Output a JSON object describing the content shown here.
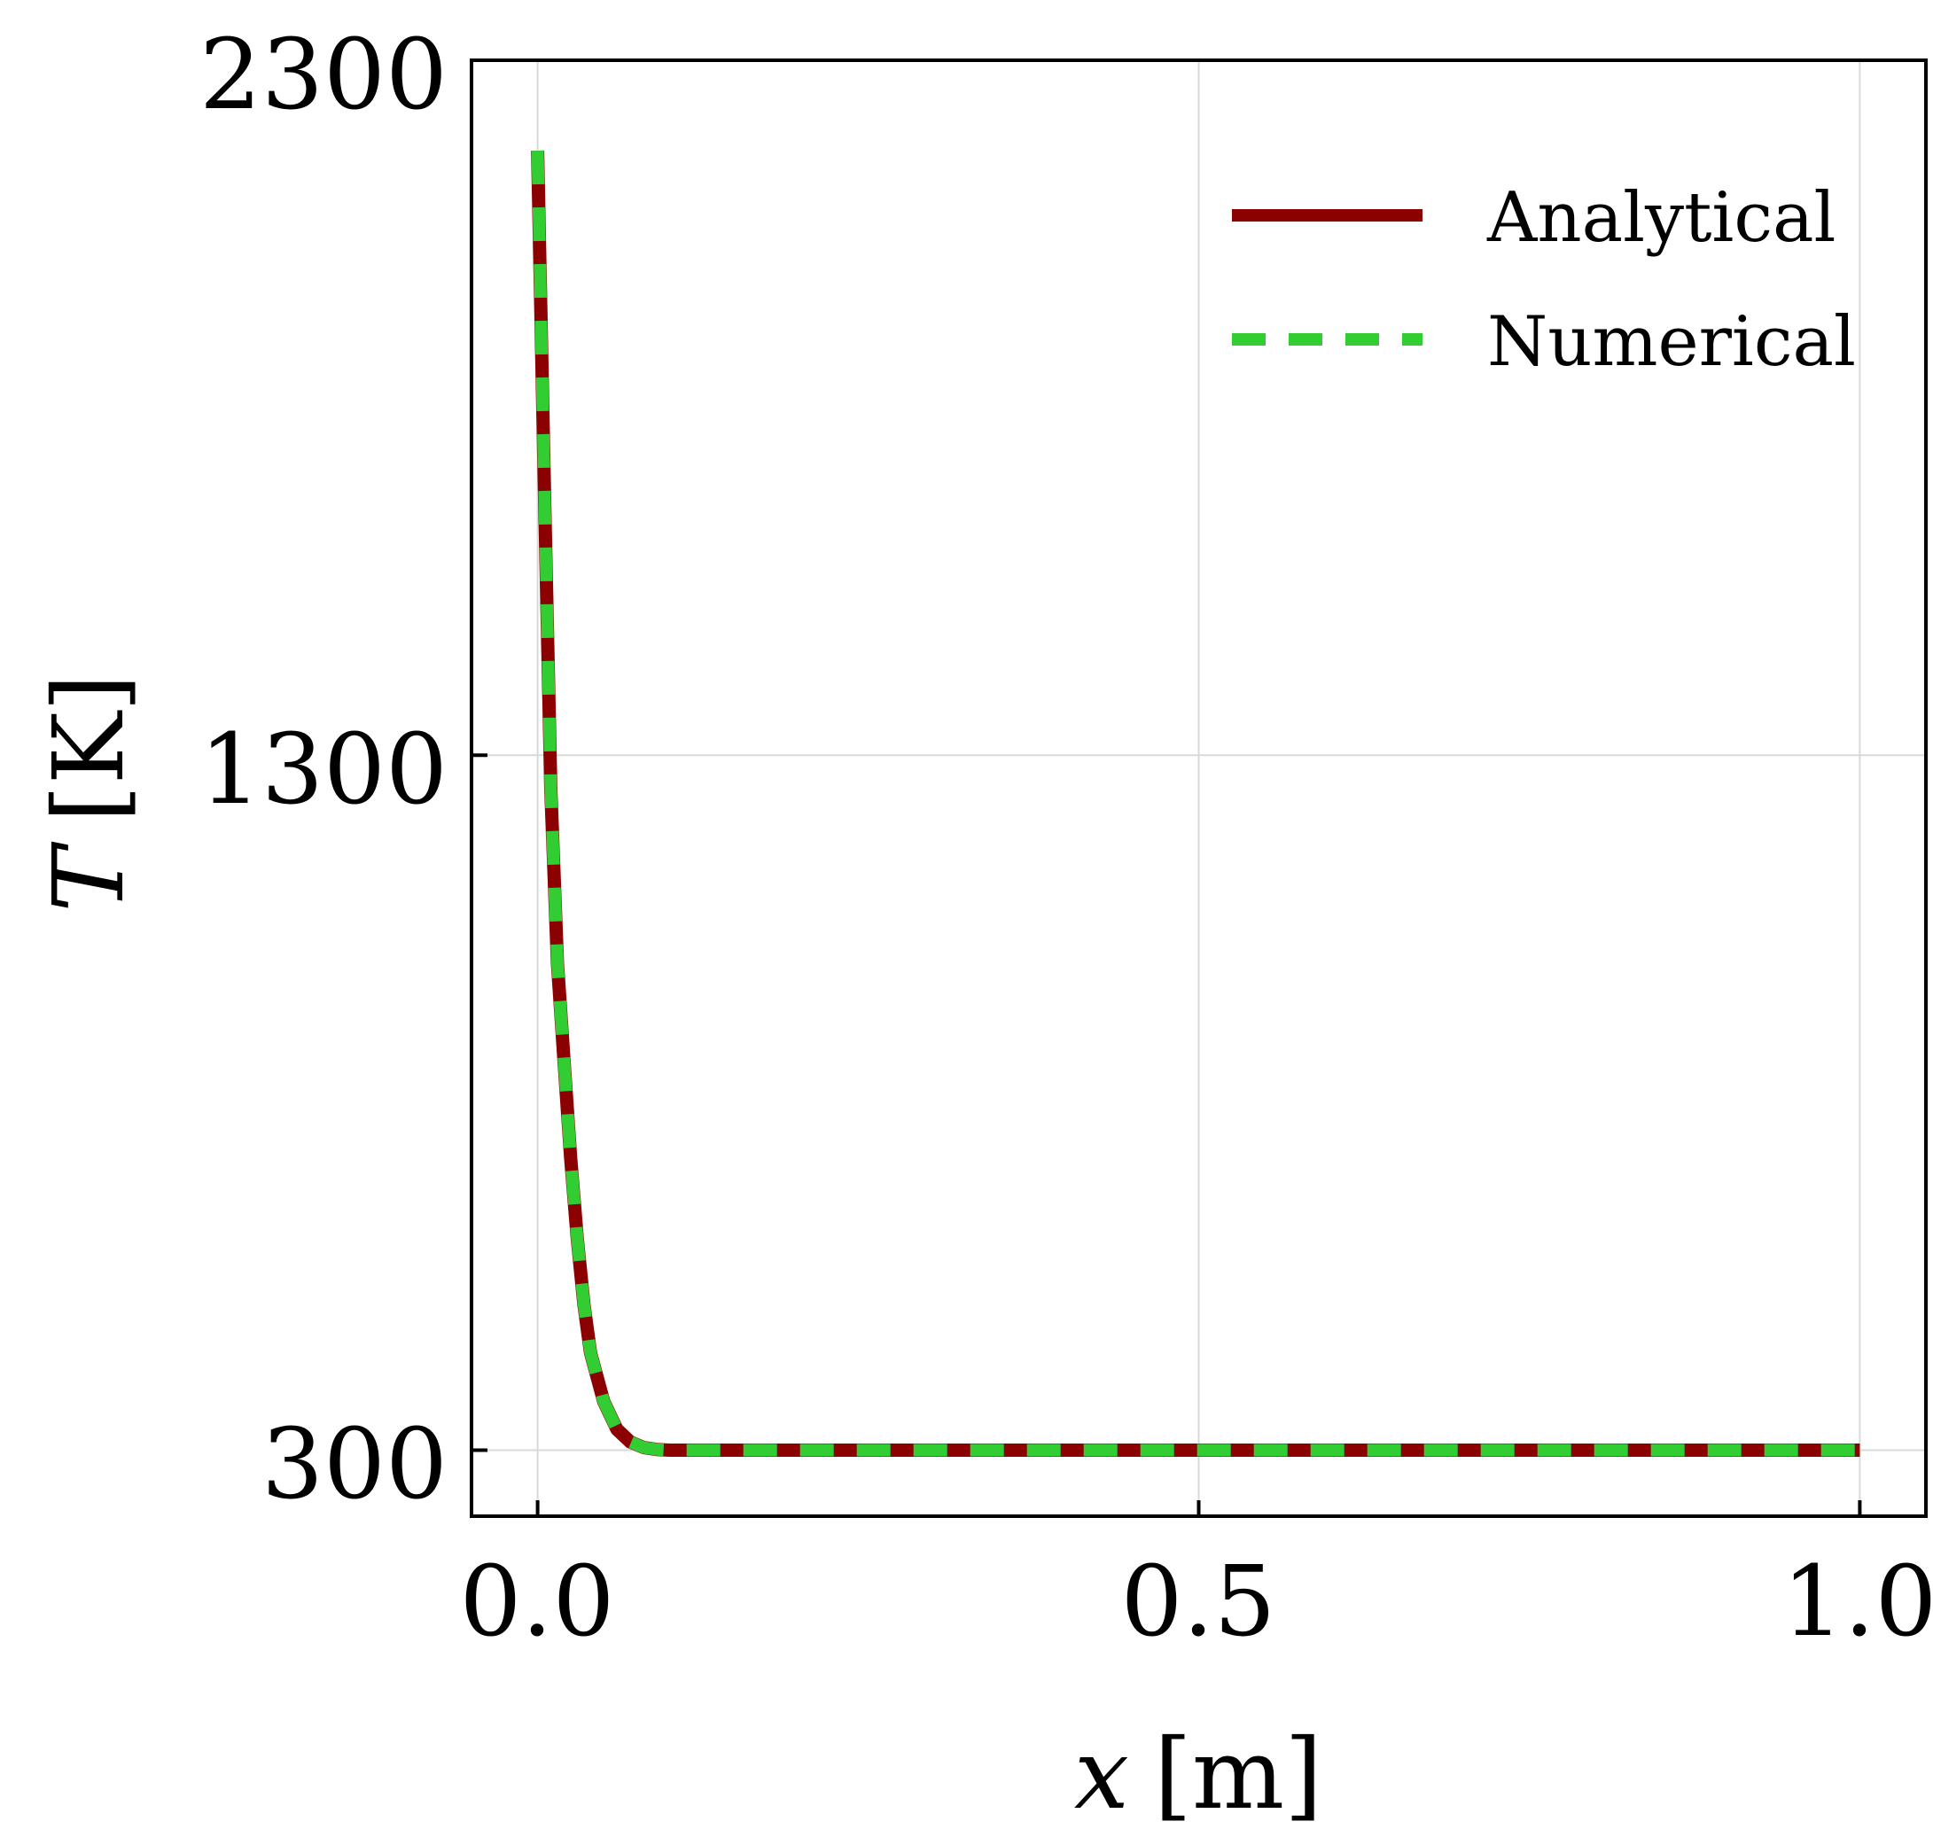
{
  "chart_data": {
    "type": "line",
    "title": "",
    "xlabel_var": "x",
    "xlabel_unit": "[m]",
    "ylabel_var": "T",
    "ylabel_unit": "[K]",
    "xlim": [
      -0.05,
      1.05
    ],
    "ylim": [
      205,
      2300
    ],
    "grid": true,
    "legend_position": "top-right",
    "xticks": [
      0.0,
      0.5,
      1.0
    ],
    "xtick_labels": [
      "0.0",
      "0.5",
      "1.0"
    ],
    "yticks": [
      300,
      1300,
      2300
    ],
    "ytick_labels": [
      "300",
      "1300",
      "2300"
    ],
    "series": [
      {
        "name": "Analytical",
        "color": "#8b0000",
        "style": "solid",
        "x": [
          0.0,
          0.002,
          0.005,
          0.008,
          0.01,
          0.015,
          0.02,
          0.025,
          0.03,
          0.035,
          0.04,
          0.05,
          0.06,
          0.07,
          0.08,
          0.09,
          0.1,
          0.12,
          0.15,
          0.2,
          0.3,
          0.5,
          0.7,
          1.0
        ],
        "y": [
          2170,
          1980,
          1700,
          1430,
          1250,
          1000,
          860,
          720,
          605,
          510,
          440,
          370,
          330,
          312,
          304,
          301,
          300,
          300,
          300,
          300,
          300,
          300,
          300,
          300
        ]
      },
      {
        "name": "Numerical",
        "color": "#32cd32",
        "style": "dashed",
        "x": [
          0.0,
          0.002,
          0.005,
          0.008,
          0.01,
          0.015,
          0.02,
          0.025,
          0.03,
          0.035,
          0.04,
          0.05,
          0.06,
          0.07,
          0.08,
          0.09,
          0.1,
          0.12,
          0.15,
          0.2,
          0.3,
          0.5,
          0.7,
          1.0
        ],
        "y": [
          2170,
          1980,
          1700,
          1430,
          1250,
          1000,
          860,
          720,
          605,
          510,
          440,
          370,
          330,
          312,
          304,
          301,
          300,
          300,
          300,
          300,
          300,
          300,
          300,
          300
        ]
      }
    ]
  }
}
